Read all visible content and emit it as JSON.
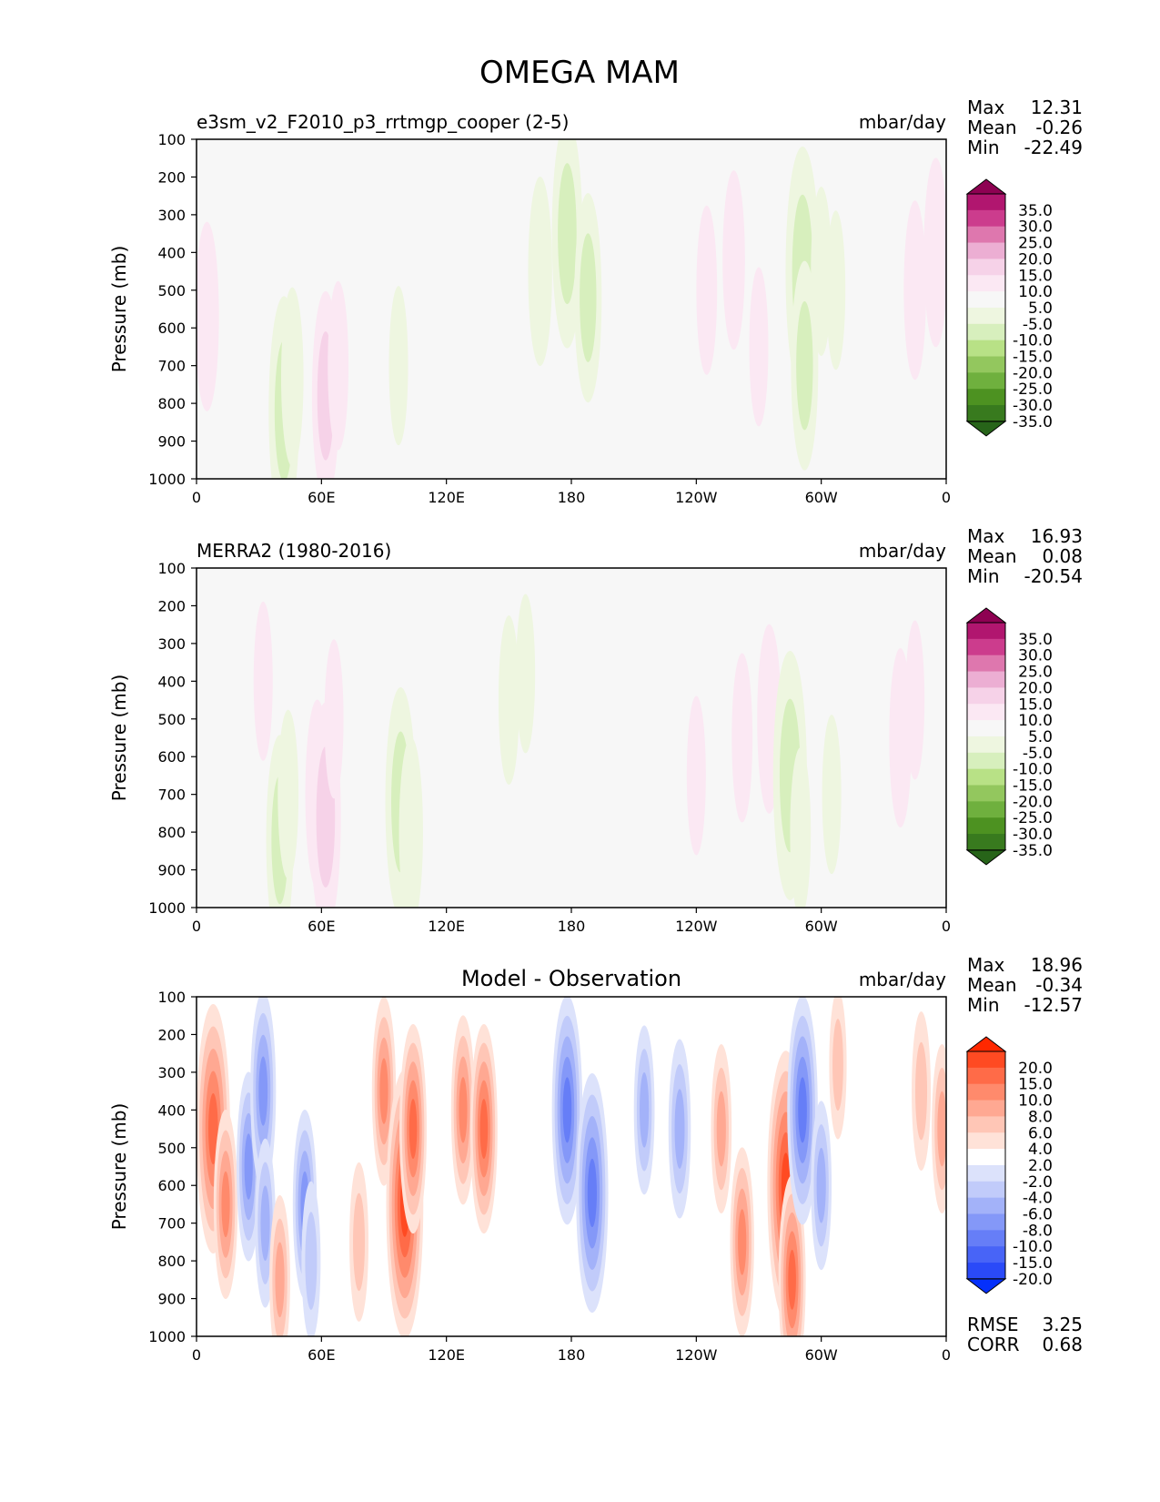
{
  "figure_title": "OMEGA MAM",
  "chart_data": [
    {
      "type": "heatmap",
      "panel": "model",
      "title_left": "e3sm_v2_F2010_p3_rrtmgp_cooper (2-5)",
      "title_center": "",
      "units": "mbar/day",
      "ylabel": "Pressure (mb)",
      "xlabel": "",
      "x_ticks": [
        "0",
        "60E",
        "120E",
        "180",
        "120W",
        "60W",
        "0"
      ],
      "x_range": [
        0,
        360
      ],
      "y_ticks": [
        "100",
        "200",
        "300",
        "400",
        "500",
        "600",
        "700",
        "800",
        "900",
        "1000"
      ],
      "y_range": [
        1000,
        100
      ],
      "stats": [
        {
          "label": "Max",
          "value": "12.31"
        },
        {
          "label": "Mean",
          "value": "-0.26"
        },
        {
          "label": "Min",
          "value": "-22.49"
        }
      ],
      "colorbar": {
        "labels": [
          "35.0",
          "30.0",
          "25.0",
          "20.0",
          "15.0",
          "10.0",
          "5.0",
          "-5.0",
          "-10.0",
          "-15.0",
          "-20.0",
          "-25.0",
          "-30.0",
          "-35.0"
        ],
        "colors": [
          "#8e0152",
          "#b1166f",
          "#cc3c8d",
          "#de77ae",
          "#ecaed3",
          "#f6d2e8",
          "#fbe8f3",
          "#f7f7f7",
          "#eef6e0",
          "#d7efbd",
          "#b8e186",
          "#93c75e",
          "#6fb03e",
          "#4d9221",
          "#387a1e",
          "#276419"
        ]
      },
      "features": [
        {
          "type": "down",
          "lon": 5,
          "p": 570,
          "amp": 8
        },
        {
          "type": "down",
          "lon": 10,
          "p": 380,
          "amp": 4
        },
        {
          "type": "up",
          "lon": 42,
          "p": 820,
          "amp": -12
        },
        {
          "type": "up",
          "lon": 46,
          "p": 730,
          "amp": -7
        },
        {
          "type": "down",
          "lon": 62,
          "p": 780,
          "amp": 10
        },
        {
          "type": "down",
          "lon": 68,
          "p": 700,
          "amp": 6
        },
        {
          "type": "down",
          "lon": 60,
          "p": 400,
          "amp": 4
        },
        {
          "type": "down",
          "lon": 88,
          "p": 380,
          "amp": 4
        },
        {
          "type": "up",
          "lon": 97,
          "p": 700,
          "amp": -5
        },
        {
          "type": "up",
          "lon": 165,
          "p": 450,
          "amp": -8
        },
        {
          "type": "up",
          "lon": 178,
          "p": 350,
          "amp": -12
        },
        {
          "type": "up",
          "lon": 188,
          "p": 520,
          "amp": -10
        },
        {
          "type": "down",
          "lon": 245,
          "p": 500,
          "amp": 6
        },
        {
          "type": "down",
          "lon": 258,
          "p": 420,
          "amp": 7
        },
        {
          "type": "down",
          "lon": 270,
          "p": 650,
          "amp": 5
        },
        {
          "type": "up",
          "lon": 291,
          "p": 450,
          "amp": -14
        },
        {
          "type": "up",
          "lon": 292,
          "p": 700,
          "amp": -10
        },
        {
          "type": "up",
          "lon": 300,
          "p": 450,
          "amp": -6
        },
        {
          "type": "up",
          "lon": 307,
          "p": 500,
          "amp": -5
        },
        {
          "type": "down",
          "lon": 345,
          "p": 500,
          "amp": 7
        },
        {
          "type": "down",
          "lon": 355,
          "p": 400,
          "amp": 8
        }
      ]
    },
    {
      "type": "heatmap",
      "panel": "obs",
      "title_left": "MERRA2 (1980-2016)",
      "title_center": "",
      "units": "mbar/day",
      "ylabel": "Pressure (mb)",
      "xlabel": "",
      "x_ticks": [
        "0",
        "60E",
        "120E",
        "180",
        "120W",
        "60W",
        "0"
      ],
      "x_range": [
        0,
        360
      ],
      "y_ticks": [
        "100",
        "200",
        "300",
        "400",
        "500",
        "600",
        "700",
        "800",
        "900",
        "1000"
      ],
      "y_range": [
        1000,
        100
      ],
      "stats": [
        {
          "label": "Max",
          "value": "16.93"
        },
        {
          "label": "Mean",
          "value": "0.08"
        },
        {
          "label": "Min",
          "value": "-20.54"
        }
      ],
      "colorbar": {
        "labels": [
          "35.0",
          "30.0",
          "25.0",
          "20.0",
          "15.0",
          "10.0",
          "5.0",
          "-5.0",
          "-10.0",
          "-15.0",
          "-20.0",
          "-25.0",
          "-30.0",
          "-35.0"
        ],
        "colors": [
          "#8e0152",
          "#b1166f",
          "#cc3c8d",
          "#de77ae",
          "#ecaed3",
          "#f6d2e8",
          "#fbe8f3",
          "#f7f7f7",
          "#eef6e0",
          "#d7efbd",
          "#b8e186",
          "#93c75e",
          "#6fb03e",
          "#4d9221",
          "#387a1e",
          "#276419"
        ]
      },
      "features": [
        {
          "type": "down",
          "lon": 3,
          "p": 650,
          "amp": 4
        },
        {
          "type": "down",
          "lon": 32,
          "p": 400,
          "amp": 5
        },
        {
          "type": "up",
          "lon": 40,
          "p": 820,
          "amp": -10
        },
        {
          "type": "up",
          "lon": 44,
          "p": 700,
          "amp": -6
        },
        {
          "type": "down",
          "lon": 58,
          "p": 700,
          "amp": 8
        },
        {
          "type": "down",
          "lon": 62,
          "p": 760,
          "amp": 12
        },
        {
          "type": "down",
          "lon": 66,
          "p": 500,
          "amp": 5
        },
        {
          "type": "up",
          "lon": 98,
          "p": 720,
          "amp": -12
        },
        {
          "type": "up",
          "lon": 103,
          "p": 800,
          "amp": -8
        },
        {
          "type": "up",
          "lon": 150,
          "p": 450,
          "amp": -6
        },
        {
          "type": "up",
          "lon": 158,
          "p": 380,
          "amp": -5
        },
        {
          "type": "down",
          "lon": 240,
          "p": 650,
          "amp": 5
        },
        {
          "type": "down",
          "lon": 262,
          "p": 550,
          "amp": 6
        },
        {
          "type": "down",
          "lon": 275,
          "p": 500,
          "amp": 8
        },
        {
          "type": "up",
          "lon": 285,
          "p": 650,
          "amp": -14
        },
        {
          "type": "up",
          "lon": 290,
          "p": 800,
          "amp": -6
        },
        {
          "type": "up",
          "lon": 305,
          "p": 700,
          "amp": -5
        },
        {
          "type": "down",
          "lon": 338,
          "p": 550,
          "amp": 7
        },
        {
          "type": "down",
          "lon": 345,
          "p": 450,
          "amp": 5
        }
      ]
    },
    {
      "type": "heatmap",
      "panel": "diff",
      "title_left": "",
      "title_center": "Model - Observation",
      "units": "mbar/day",
      "ylabel": "Pressure (mb)",
      "xlabel": "",
      "x_ticks": [
        "0",
        "60E",
        "120E",
        "180",
        "120W",
        "60W",
        "0"
      ],
      "x_range": [
        0,
        360
      ],
      "y_ticks": [
        "100",
        "200",
        "300",
        "400",
        "500",
        "600",
        "700",
        "800",
        "900",
        "1000"
      ],
      "y_range": [
        1000,
        100
      ],
      "stats": [
        {
          "label": "Max",
          "value": "18.96"
        },
        {
          "label": "Mean",
          "value": "-0.34"
        },
        {
          "label": "Min",
          "value": "-12.57"
        }
      ],
      "extra_stats": [
        {
          "label": "RMSE",
          "value": "3.25"
        },
        {
          "label": "CORR",
          "value": "0.68"
        }
      ],
      "colorbar": {
        "labels": [
          "20.0",
          "15.0",
          "10.0",
          "8.0",
          "6.0",
          "4.0",
          "2.0",
          "-2.0",
          "-4.0",
          "-6.0",
          "-8.0",
          "-10.0",
          "-15.0",
          "-20.0"
        ],
        "colors": [
          "#ff2800",
          "#ff4a22",
          "#ff6b48",
          "#ff8a6c",
          "#ffa892",
          "#ffc6b6",
          "#ffe2d8",
          "#ffffff",
          "#dce2fb",
          "#c1cbfa",
          "#a3b2f9",
          "#8498f8",
          "#667ef7",
          "#4864f7",
          "#2a4af8",
          "#0530fb"
        ]
      },
      "features": [
        {
          "type": "down",
          "lon": 8,
          "p": 450,
          "amp": 14
        },
        {
          "type": "down",
          "lon": 14,
          "p": 650,
          "amp": 8
        },
        {
          "type": "up",
          "lon": 25,
          "p": 550,
          "amp": -8
        },
        {
          "type": "up",
          "lon": 32,
          "p": 350,
          "amp": -9
        },
        {
          "type": "up",
          "lon": 33,
          "p": 700,
          "amp": -6
        },
        {
          "type": "down",
          "lon": 40,
          "p": 850,
          "amp": 6
        },
        {
          "type": "up",
          "lon": 52,
          "p": 650,
          "amp": -8
        },
        {
          "type": "up",
          "lon": 55,
          "p": 800,
          "amp": -5
        },
        {
          "type": "down",
          "lon": 78,
          "p": 750,
          "amp": 5
        },
        {
          "type": "down",
          "lon": 90,
          "p": 350,
          "amp": 8
        },
        {
          "type": "down",
          "lon": 100,
          "p": 650,
          "amp": 16
        },
        {
          "type": "down",
          "lon": 104,
          "p": 450,
          "amp": 10
        },
        {
          "type": "down",
          "lon": 128,
          "p": 400,
          "amp": 8
        },
        {
          "type": "down",
          "lon": 138,
          "p": 450,
          "amp": 10
        },
        {
          "type": "up",
          "lon": 178,
          "p": 400,
          "amp": -12
        },
        {
          "type": "up",
          "lon": 190,
          "p": 620,
          "amp": -13
        },
        {
          "type": "up",
          "lon": 215,
          "p": 400,
          "amp": -6
        },
        {
          "type": "up",
          "lon": 232,
          "p": 450,
          "amp": -7
        },
        {
          "type": "down",
          "lon": 252,
          "p": 450,
          "amp": 6
        },
        {
          "type": "down",
          "lon": 262,
          "p": 750,
          "amp": 8
        },
        {
          "type": "down",
          "lon": 283,
          "p": 600,
          "amp": 16
        },
        {
          "type": "down",
          "lon": 286,
          "p": 850,
          "amp": 10
        },
        {
          "type": "up",
          "lon": 291,
          "p": 400,
          "amp": -12
        },
        {
          "type": "up",
          "lon": 300,
          "p": 600,
          "amp": -6
        },
        {
          "type": "down",
          "lon": 308,
          "p": 280,
          "amp": 4
        },
        {
          "type": "down",
          "lon": 348,
          "p": 350,
          "amp": 5
        },
        {
          "type": "down",
          "lon": 358,
          "p": 450,
          "amp": 6
        }
      ]
    }
  ]
}
